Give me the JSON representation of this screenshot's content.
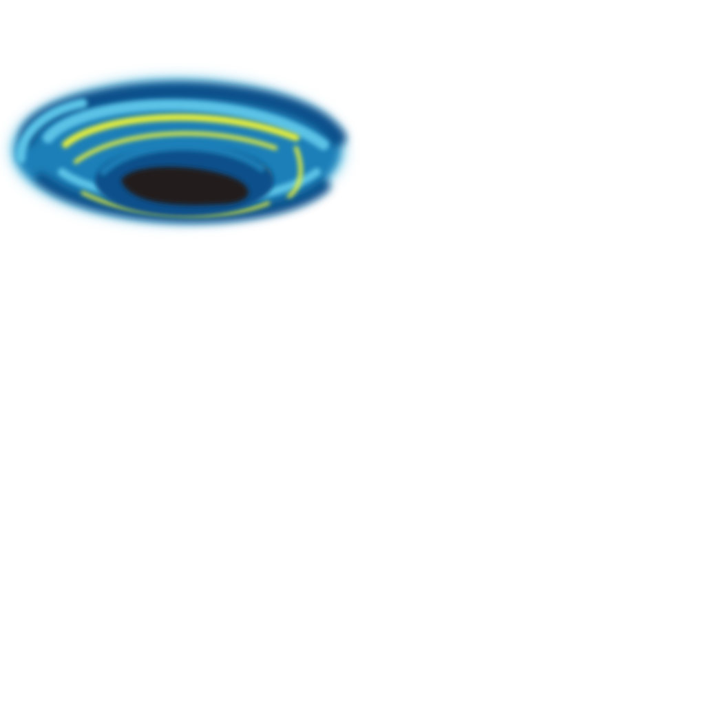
{
  "canvas": {
    "background": "#ffffff"
  },
  "artwork": {
    "subject": "swirl-vortex",
    "palette": {
      "deep_blue": "#0b4f8a",
      "mid_blue": "#1f7fb8",
      "light_blue": "#5cc3e6",
      "yellow": "#e6ee3a",
      "core": "#231f1f"
    }
  }
}
